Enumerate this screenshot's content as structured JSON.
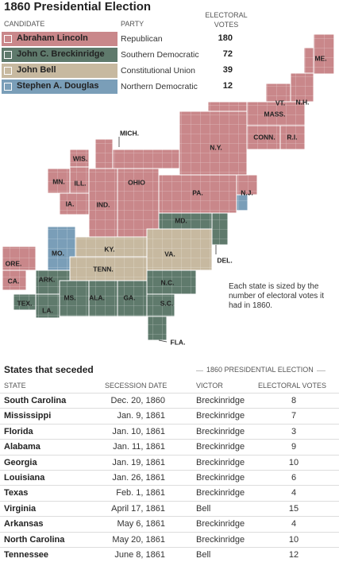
{
  "header": {
    "title": "1860 Presidential Election"
  },
  "legend": {
    "columns": [
      "CANDIDATE",
      "PARTY",
      "ELECTORAL VOTES"
    ],
    "rows": [
      [
        "Abraham Lincoln",
        "Republican",
        180
      ],
      [
        "John C. Breckinridge",
        "Southern Democratic",
        72
      ],
      [
        "John Bell",
        "Constitutional Union",
        39
      ],
      [
        "Stephen A. Douglas",
        "Northern Democratic",
        12
      ]
    ]
  },
  "map": {
    "labels": [
      "ME.",
      "VT.",
      "N.H.",
      "MASS.",
      "CONN.",
      "R.I.",
      "N.Y.",
      "PA.",
      "N.J.",
      "MICH.",
      "WIS.",
      "MN.",
      "ILL.",
      "IA.",
      "IND.",
      "OHIO",
      "MD.",
      "DEL.",
      "MO.",
      "KY.",
      "VA.",
      "TENN.",
      "ORE.",
      "CA.",
      "ARK.",
      "N.C.",
      "S.C.",
      "TEX.",
      "LA.",
      "MS.",
      "ALA.",
      "GA.",
      "FLA."
    ],
    "note": "Each state is sized by the number of electoral votes it had in 1860."
  },
  "table": {
    "title": "States that seceded",
    "group_label": "1860 PRESIDENTIAL ELECTION",
    "columns": [
      "STATE",
      "SECESSION DATE",
      "VICTOR",
      "ELECTORAL VOTES"
    ],
    "rows": [
      [
        "South Carolina",
        "Dec. 20, 1860",
        "Breckinridge",
        8
      ],
      [
        "Mississippi",
        "Jan. 9, 1861",
        "Breckinridge",
        7
      ],
      [
        "Florida",
        "Jan. 10, 1861",
        "Breckinridge",
        3
      ],
      [
        "Alabama",
        "Jan. 11, 1861",
        "Breckinridge",
        9
      ],
      [
        "Georgia",
        "Jan. 19, 1861",
        "Breckinridge",
        10
      ],
      [
        "Louisiana",
        "Jan. 26, 1861",
        "Breckinridge",
        6
      ],
      [
        "Texas",
        "Feb. 1, 1861",
        "Breckinridge",
        4
      ],
      [
        "Virginia",
        "April 17, 1861",
        "Bell",
        15
      ],
      [
        "Arkansas",
        "May 6, 1861",
        "Breckinridge",
        4
      ],
      [
        "North Carolina",
        "May 20, 1861",
        "Breckinridge",
        10
      ],
      [
        "Tennessee",
        "June 8, 1861",
        "Bell",
        12
      ]
    ]
  }
}
